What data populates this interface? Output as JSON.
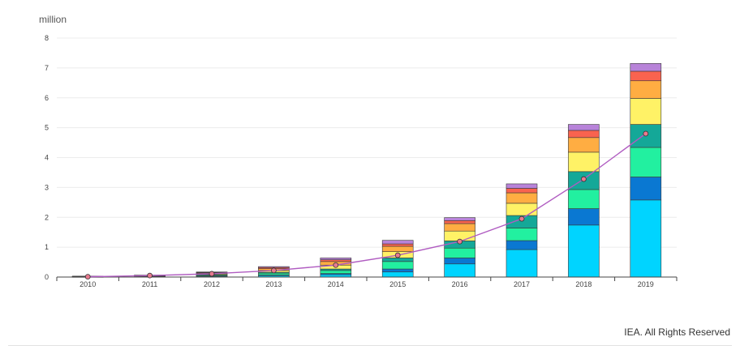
{
  "chart_data": {
    "type": "bar",
    "stacked": true,
    "unit_label": "million",
    "ylim": [
      0,
      8
    ],
    "yticks": [
      "0",
      "1",
      "2",
      "3",
      "4",
      "5",
      "6",
      "7",
      "8"
    ],
    "grid": true,
    "categories": [
      "2010",
      "2011",
      "2012",
      "2013",
      "2014",
      "2015",
      "2016",
      "2017",
      "2018",
      "2019"
    ],
    "series": [
      {
        "color": "#00d4ff",
        "values": [
          0.005,
          0.01,
          0.03,
          0.05,
          0.08,
          0.17,
          0.44,
          0.92,
          1.74,
          2.58
        ]
      },
      {
        "color": "#0a78d2",
        "values": [
          0.003,
          0.005,
          0.01,
          0.02,
          0.04,
          0.1,
          0.2,
          0.3,
          0.55,
          0.77
        ]
      },
      {
        "color": "#22f0a0",
        "values": [
          0.005,
          0.01,
          0.03,
          0.06,
          0.1,
          0.25,
          0.33,
          0.42,
          0.64,
          0.99
        ]
      },
      {
        "color": "#14a898",
        "values": [
          0.003,
          0.01,
          0.02,
          0.03,
          0.05,
          0.12,
          0.24,
          0.42,
          0.6,
          0.77
        ]
      },
      {
        "color": "#fff266",
        "values": [
          0.005,
          0.01,
          0.03,
          0.06,
          0.13,
          0.21,
          0.33,
          0.41,
          0.65,
          0.87
        ]
      },
      {
        "color": "#ffad42",
        "values": [
          0.004,
          0.01,
          0.02,
          0.06,
          0.12,
          0.18,
          0.25,
          0.35,
          0.49,
          0.59
        ]
      },
      {
        "color": "#f9634f",
        "values": [
          0.002,
          0.005,
          0.02,
          0.04,
          0.06,
          0.08,
          0.1,
          0.15,
          0.24,
          0.32
        ]
      },
      {
        "color": "#b883d9",
        "values": [
          0.002,
          0.005,
          0.01,
          0.03,
          0.06,
          0.12,
          0.1,
          0.15,
          0.2,
          0.26
        ]
      }
    ],
    "line": {
      "color": "#b05cc1",
      "marker_color": "#e87a8f",
      "values": [
        0.01,
        0.05,
        0.11,
        0.22,
        0.4,
        0.73,
        1.19,
        1.95,
        3.28,
        4.8
      ]
    }
  },
  "credit": "IEA. All Rights Reserved"
}
